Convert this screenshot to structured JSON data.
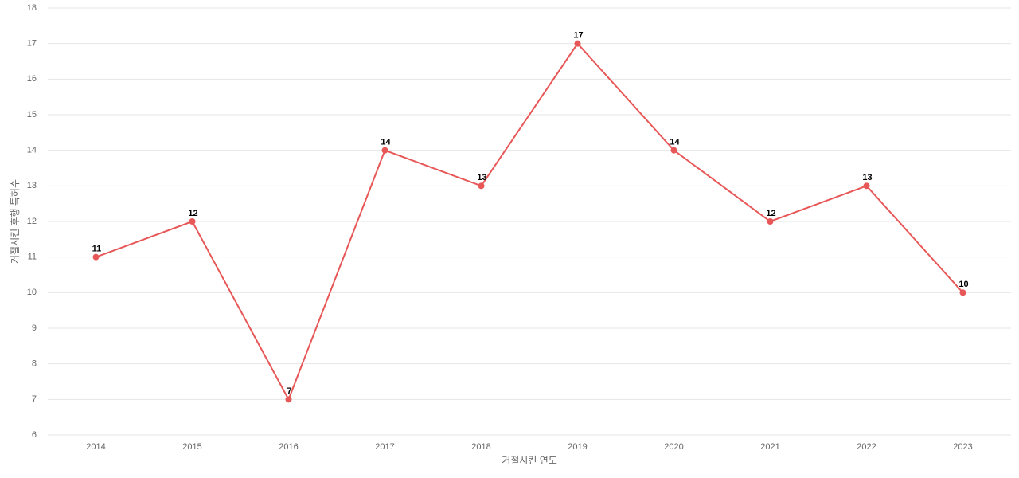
{
  "chart_data": {
    "type": "line",
    "x_label": "거절시킨 연도",
    "y_label": "거절시킨 후행 특허수",
    "categories": [
      "2014",
      "2015",
      "2016",
      "2017",
      "2018",
      "2019",
      "2020",
      "2021",
      "2022",
      "2023"
    ],
    "values": [
      11,
      12,
      7,
      14,
      13,
      17,
      14,
      12,
      13,
      10
    ],
    "color": "#e85757",
    "ylim": [
      6,
      18
    ],
    "yticks": [
      6,
      7,
      8,
      9,
      10,
      11,
      12,
      13,
      14,
      15,
      16,
      17,
      18
    ],
    "grid": true
  }
}
